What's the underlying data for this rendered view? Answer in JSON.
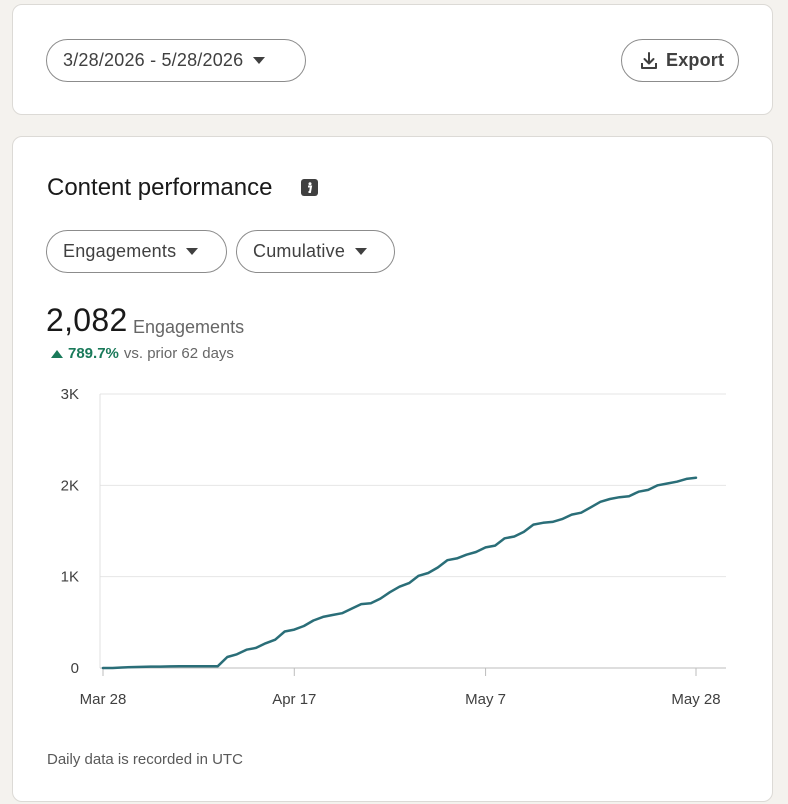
{
  "header": {
    "date_range": "3/28/2026 - 5/28/2026",
    "export_label": "Export"
  },
  "performance": {
    "title": "Content performance",
    "metric_select": "Engagements",
    "mode_select": "Cumulative",
    "total_value": "2,082",
    "total_label": "Engagements",
    "change_pct": "789.7%",
    "change_text": "vs. prior 62 days",
    "footnote": "Daily data is recorded in UTC"
  },
  "colors": {
    "line": "#2a6e78",
    "positive": "#1a7a5a",
    "grid": "#e6e6e6"
  },
  "chart_data": {
    "type": "line",
    "x_labels": [
      "Mar 28",
      "Apr 17",
      "May 7",
      "May 28"
    ],
    "y_ticks": [
      "0",
      "1K",
      "2K",
      "3K"
    ],
    "ylim": [
      0,
      3000
    ],
    "grid": true,
    "series": [
      {
        "values": [
          0,
          0,
          5,
          10,
          12,
          15,
          15,
          18,
          20,
          20,
          20,
          20,
          20,
          120,
          150,
          200,
          220,
          270,
          310,
          400,
          420,
          460,
          520,
          560,
          580,
          600,
          650,
          700,
          710,
          760,
          830,
          890,
          930,
          1010,
          1040,
          1100,
          1180,
          1200,
          1240,
          1270,
          1320,
          1340,
          1420,
          1440,
          1490,
          1570,
          1590,
          1600,
          1630,
          1680,
          1700,
          1760,
          1820,
          1850,
          1870,
          1880,
          1930,
          1950,
          2000,
          2020,
          2040,
          2070,
          2082
        ]
      }
    ]
  }
}
